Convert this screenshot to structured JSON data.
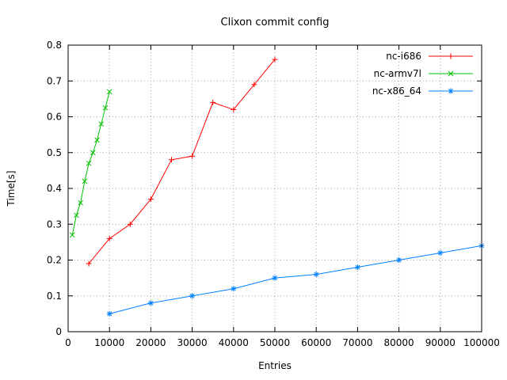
{
  "chart_data": {
    "type": "line",
    "title": "Clixon commit config",
    "xlabel": "Entries",
    "ylabel": "Time[s]",
    "xlim": [
      0,
      100000
    ],
    "ylim": [
      0,
      0.8
    ],
    "xticks": [
      0,
      10000,
      20000,
      30000,
      40000,
      50000,
      60000,
      70000,
      80000,
      90000,
      100000
    ],
    "yticks": [
      0,
      0.1,
      0.2,
      0.3,
      0.4,
      0.5,
      0.6,
      0.7,
      0.8
    ],
    "grid": true,
    "legend_position": "top-right",
    "series": [
      {
        "name": "nc-i686",
        "color": "#ff0000",
        "marker": "plus",
        "points": [
          [
            5000,
            0.19
          ],
          [
            10000,
            0.26
          ],
          [
            15000,
            0.3
          ],
          [
            20000,
            0.37
          ],
          [
            25000,
            0.48
          ],
          [
            30000,
            0.49
          ],
          [
            35000,
            0.64
          ],
          [
            40000,
            0.62
          ],
          [
            45000,
            0.69
          ],
          [
            50000,
            0.76
          ]
        ]
      },
      {
        "name": "nc-armv7l",
        "color": "#00c000",
        "marker": "cross",
        "points": [
          [
            1000,
            0.27
          ],
          [
            2000,
            0.325
          ],
          [
            3000,
            0.36
          ],
          [
            4000,
            0.42
          ],
          [
            5000,
            0.47
          ],
          [
            6000,
            0.5
          ],
          [
            7000,
            0.535
          ],
          [
            8000,
            0.58
          ],
          [
            9000,
            0.625
          ],
          [
            10000,
            0.67
          ]
        ]
      },
      {
        "name": "nc-x86_64",
        "color": "#0080ff",
        "marker": "star",
        "points": [
          [
            10000,
            0.05
          ],
          [
            20000,
            0.08
          ],
          [
            30000,
            0.1
          ],
          [
            40000,
            0.12
          ],
          [
            50000,
            0.15
          ],
          [
            60000,
            0.16
          ],
          [
            70000,
            0.18
          ],
          [
            80000,
            0.2
          ],
          [
            90000,
            0.22
          ],
          [
            100000,
            0.24
          ]
        ]
      }
    ]
  }
}
